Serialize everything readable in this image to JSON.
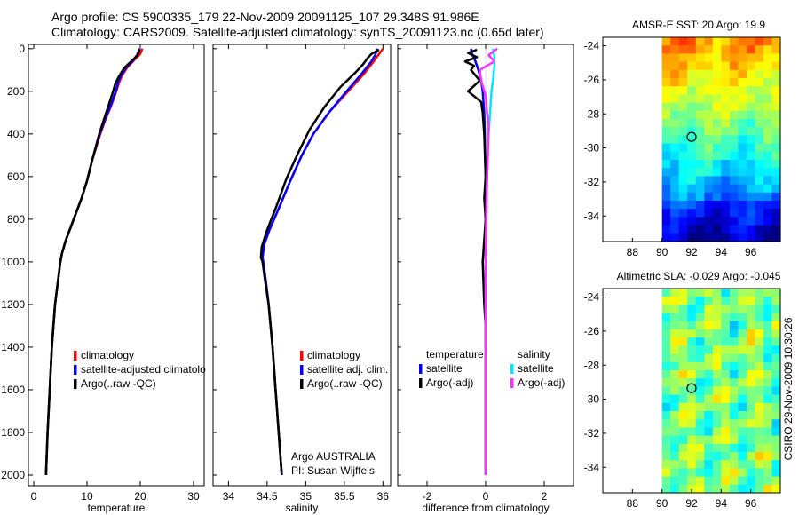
{
  "header": {
    "line1": "Argo profile: CS 5900335_179 22-Nov-2009 20091125_107 29.348S 91.986E",
    "line2": "Climatology: CARS2009. Satellite-adjusted climatology: synTS_20091123.nc (0.65d later)"
  },
  "side_label": "CSIRO 29-Nov-2009 10:30:26",
  "colors": {
    "climatology": "#ff0000",
    "satellite": "#0000ff",
    "argo": "#000000",
    "sal_satellite": "#00e5ff",
    "sal_argo": "#ff33ff"
  },
  "chart_data": [
    {
      "type": "line",
      "id": "temperature",
      "xlabel": "temperature",
      "ylabel": "",
      "xlim": [
        -1,
        32
      ],
      "ylim": [
        2050,
        -20
      ],
      "xticks": [
        0,
        10,
        20,
        30
      ],
      "xtick_labels": [
        "0",
        "10",
        "20",
        "30"
      ],
      "yticks": [
        0,
        200,
        400,
        600,
        800,
        1000,
        1200,
        1400,
        1600,
        1800,
        2000
      ],
      "ytick_labels": [
        "0",
        "200",
        "400",
        "600",
        "800",
        "1000",
        "1200",
        "1400",
        "1600",
        "1800",
        "2000"
      ],
      "series": [
        {
          "name": "climatology",
          "color": "#ff0000",
          "points": [
            [
              20.4,
              0
            ],
            [
              20.0,
              25
            ],
            [
              19.0,
              50
            ],
            [
              17.5,
              90
            ],
            [
              16.5,
              130
            ],
            [
              16.0,
              160
            ],
            [
              15.5,
              200
            ],
            [
              14.5,
              270
            ],
            [
              13.5,
              330
            ],
            [
              12.5,
              400
            ],
            [
              11.0,
              520
            ],
            [
              10.0,
              620
            ],
            [
              9.0,
              700
            ],
            [
              7.5,
              800
            ],
            [
              6.0,
              900
            ],
            [
              5.3,
              960
            ],
            [
              5.0,
              1000
            ],
            [
              4.5,
              1100
            ],
            [
              4.0,
              1200
            ],
            [
              3.7,
              1300
            ],
            [
              3.4,
              1400
            ],
            [
              3.2,
              1500
            ],
            [
              3.0,
              1600
            ],
            [
              2.8,
              1700
            ],
            [
              2.6,
              1800
            ],
            [
              2.45,
              1900
            ],
            [
              2.3,
              2000
            ]
          ]
        },
        {
          "name": "satellite-adjusted climatology",
          "color": "#0000ff",
          "points": [
            [
              19.9,
              0
            ],
            [
              19.4,
              30
            ],
            [
              18.5,
              60
            ],
            [
              17.3,
              90
            ],
            [
              16.3,
              130
            ],
            [
              15.8,
              160
            ],
            [
              15.4,
              200
            ],
            [
              14.4,
              270
            ],
            [
              13.4,
              330
            ],
            [
              12.4,
              400
            ],
            [
              11.0,
              520
            ],
            [
              10.0,
              620
            ],
            [
              9.0,
              700
            ],
            [
              7.5,
              800
            ],
            [
              6.0,
              900
            ],
            [
              5.3,
              960
            ],
            [
              5.0,
              1000
            ],
            [
              4.5,
              1100
            ],
            [
              4.0,
              1200
            ],
            [
              3.7,
              1300
            ],
            [
              3.4,
              1400
            ],
            [
              3.2,
              1500
            ],
            [
              3.0,
              1600
            ],
            [
              2.8,
              1700
            ],
            [
              2.6,
              1800
            ],
            [
              2.45,
              1900
            ],
            [
              2.3,
              2000
            ]
          ]
        },
        {
          "name": "Argo(..raw -QC)",
          "color": "#000000",
          "points": [
            [
              19.9,
              5
            ],
            [
              19.5,
              30
            ],
            [
              18.3,
              60
            ],
            [
              17.0,
              90
            ],
            [
              16.0,
              130
            ],
            [
              15.3,
              165
            ],
            [
              14.9,
              200
            ],
            [
              14.0,
              270
            ],
            [
              13.2,
              330
            ],
            [
              12.3,
              400
            ],
            [
              11.0,
              520
            ],
            [
              10.0,
              620
            ],
            [
              9.0,
              700
            ],
            [
              7.5,
              800
            ],
            [
              6.0,
              900
            ],
            [
              5.3,
              960
            ],
            [
              5.0,
              1000
            ],
            [
              4.5,
              1100
            ],
            [
              4.0,
              1200
            ],
            [
              3.7,
              1300
            ],
            [
              3.4,
              1400
            ],
            [
              3.2,
              1500
            ],
            [
              3.0,
              1600
            ],
            [
              2.8,
              1700
            ],
            [
              2.6,
              1800
            ],
            [
              2.45,
              1900
            ],
            [
              2.3,
              2000
            ]
          ]
        }
      ]
    },
    {
      "type": "line",
      "id": "salinity",
      "xlabel": "salinity",
      "xlim": [
        33.8,
        36.1
      ],
      "ylim": [
        2050,
        -20
      ],
      "xticks": [
        34,
        34.5,
        35,
        35.5,
        36
      ],
      "xtick_labels": [
        "34",
        "34.5",
        "35",
        "35.5",
        "36"
      ],
      "annotation": [
        "Argo AUSTRALIA",
        "PI: Susan Wijffels"
      ],
      "series": [
        {
          "name": "climatology",
          "color": "#ff0000",
          "points": [
            [
              36.0,
              0
            ],
            [
              35.95,
              25
            ],
            [
              35.88,
              60
            ],
            [
              35.75,
              120
            ],
            [
              35.55,
              200
            ],
            [
              35.3,
              300
            ],
            [
              35.1,
              400
            ],
            [
              34.95,
              500
            ],
            [
              34.8,
              620
            ],
            [
              34.65,
              750
            ],
            [
              34.53,
              850
            ],
            [
              34.46,
              920
            ],
            [
              34.44,
              980
            ],
            [
              34.45,
              1000
            ],
            [
              34.48,
              1080
            ],
            [
              34.52,
              1200
            ],
            [
              34.57,
              1400
            ],
            [
              34.61,
              1600
            ],
            [
              34.65,
              1800
            ],
            [
              34.69,
              2000
            ]
          ]
        },
        {
          "name": "satellite adj. clim.",
          "color": "#0000ff",
          "points": [
            [
              35.93,
              0
            ],
            [
              35.9,
              30
            ],
            [
              35.85,
              60
            ],
            [
              35.72,
              120
            ],
            [
              35.53,
              200
            ],
            [
              35.3,
              300
            ],
            [
              35.1,
              400
            ],
            [
              34.95,
              500
            ],
            [
              34.8,
              620
            ],
            [
              34.65,
              750
            ],
            [
              34.53,
              850
            ],
            [
              34.46,
              920
            ],
            [
              34.44,
              980
            ],
            [
              34.45,
              1000
            ],
            [
              34.48,
              1080
            ],
            [
              34.52,
              1200
            ],
            [
              34.57,
              1400
            ],
            [
              34.61,
              1600
            ],
            [
              34.65,
              1800
            ],
            [
              34.69,
              2000
            ]
          ]
        },
        {
          "name": "Argo(..raw -QC)",
          "color": "#000000",
          "points": [
            [
              35.95,
              5
            ],
            [
              35.85,
              25
            ],
            [
              35.8,
              45
            ],
            [
              35.75,
              70
            ],
            [
              35.65,
              110
            ],
            [
              35.45,
              180
            ],
            [
              35.25,
              270
            ],
            [
              35.05,
              380
            ],
            [
              34.9,
              490
            ],
            [
              34.75,
              610
            ],
            [
              34.62,
              740
            ],
            [
              34.5,
              850
            ],
            [
              34.43,
              930
            ],
            [
              34.42,
              980
            ],
            [
              34.44,
              1000
            ],
            [
              34.47,
              1080
            ],
            [
              34.52,
              1200
            ],
            [
              34.57,
              1400
            ],
            [
              34.61,
              1600
            ],
            [
              34.65,
              1800
            ],
            [
              34.69,
              2000
            ]
          ]
        }
      ]
    },
    {
      "type": "line",
      "id": "difference",
      "xlabel": "difference from climatology",
      "xlim": [
        -3,
        3
      ],
      "ylim": [
        2050,
        -20
      ],
      "xticks": [
        -2,
        0,
        2
      ],
      "xtick_labels": [
        "-2",
        "0",
        "2"
      ],
      "legend_headers": [
        "temperature",
        "salinity"
      ],
      "series": [
        {
          "name": "satellite",
          "group": "temperature",
          "color": "#0000ff",
          "points": [
            [
              -0.5,
              0
            ],
            [
              -0.45,
              30
            ],
            [
              -0.35,
              60
            ],
            [
              -0.25,
              100
            ],
            [
              -0.15,
              150
            ],
            [
              -0.1,
              200
            ],
            [
              -0.05,
              300
            ],
            [
              -0.03,
              400
            ],
            [
              0,
              600
            ],
            [
              0,
              1000
            ],
            [
              0,
              2000
            ]
          ]
        },
        {
          "name": "Argo(-adj)",
          "group": "temperature",
          "color": "#000000",
          "points": [
            [
              -0.3,
              5
            ],
            [
              -0.6,
              20
            ],
            [
              -0.3,
              40
            ],
            [
              -0.7,
              60
            ],
            [
              -0.4,
              80
            ],
            [
              -0.5,
              100
            ],
            [
              -0.2,
              150
            ],
            [
              -0.6,
              200
            ],
            [
              -0.15,
              250
            ],
            [
              -0.1,
              300
            ],
            [
              -0.05,
              400
            ],
            [
              0,
              600
            ],
            [
              -0.05,
              700
            ],
            [
              0,
              800
            ],
            [
              -0.1,
              1000
            ],
            [
              -0.05,
              1200
            ],
            [
              0,
              1300
            ],
            [
              0,
              2000
            ]
          ]
        },
        {
          "name": "satellite",
          "group": "salinity",
          "color": "#00e5ff",
          "points": [
            [
              0.25,
              0
            ],
            [
              0.3,
              40
            ],
            [
              0.3,
              80
            ],
            [
              0.25,
              150
            ],
            [
              0.2,
              200
            ],
            [
              0.15,
              300
            ],
            [
              0.1,
              400
            ],
            [
              0.05,
              600
            ],
            [
              0.02,
              800
            ],
            [
              0,
              1000
            ],
            [
              0,
              2000
            ]
          ]
        },
        {
          "name": "Argo(-adj)",
          "group": "salinity",
          "color": "#ff33ff",
          "points": [
            [
              0.4,
              0
            ],
            [
              0.1,
              30
            ],
            [
              0.3,
              60
            ],
            [
              -0.2,
              100
            ],
            [
              -0.15,
              150
            ],
            [
              0.0,
              220
            ],
            [
              0.05,
              300
            ],
            [
              0.1,
              350
            ],
            [
              0.1,
              400
            ],
            [
              0.05,
              600
            ],
            [
              0.02,
              800
            ],
            [
              0,
              1000
            ],
            [
              0,
              2000
            ]
          ]
        }
      ]
    },
    {
      "type": "heatmap",
      "id": "sst",
      "title": "AMSR-E SST: 20 Argo: 19.9",
      "xlim": [
        86,
        98
      ],
      "ylim": [
        -35.5,
        -23.5
      ],
      "xticks": [
        88,
        90,
        92,
        94,
        96
      ],
      "xtick_labels": [
        "88",
        "90",
        "92",
        "94",
        "96"
      ],
      "yticks": [
        -24,
        -26,
        -28,
        -30,
        -32,
        -34
      ],
      "ytick_labels": [
        "-24",
        "-26",
        "-28",
        "-30",
        "-32",
        "-34"
      ],
      "data_x_start": 90,
      "marker": [
        92,
        -29.35
      ]
    },
    {
      "type": "heatmap",
      "id": "sla",
      "title": "Altimetric SLA: -0.029 Argo: -0.045",
      "xlim": [
        86,
        98
      ],
      "ylim": [
        -35.5,
        -23.5
      ],
      "xticks": [
        88,
        90,
        92,
        94,
        96
      ],
      "xtick_labels": [
        "88",
        "90",
        "92",
        "94",
        "96"
      ],
      "yticks": [
        -24,
        -26,
        -28,
        -30,
        -32,
        -34
      ],
      "ytick_labels": [
        "-24",
        "-26",
        "-28",
        "-30",
        "-32",
        "-34"
      ],
      "data_x_start": 90,
      "marker": [
        92,
        -29.35
      ]
    }
  ],
  "legends": {
    "temperature": [
      "climatology",
      "satellite-adjusted climatolo",
      "Argo(..raw -QC)"
    ],
    "salinity": [
      "climatology",
      "satellite adj. clim.",
      "Argo(..raw -QC)"
    ]
  }
}
